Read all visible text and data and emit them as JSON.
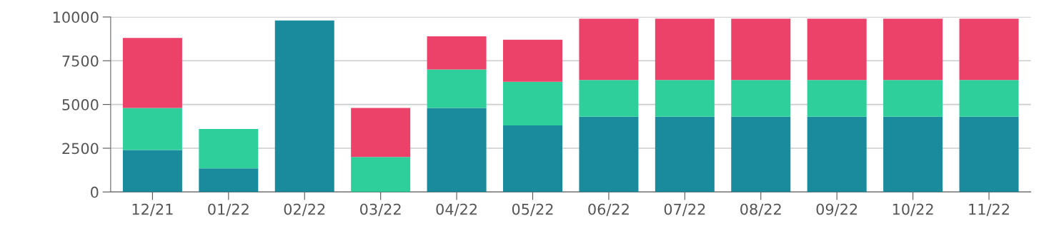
{
  "chart_data": {
    "type": "bar",
    "stacked": true,
    "categories": [
      "12/21",
      "01/22",
      "02/22",
      "03/22",
      "04/22",
      "05/22",
      "06/22",
      "07/22",
      "08/22",
      "09/22",
      "10/22",
      "11/22"
    ],
    "series": [
      {
        "color": "#1a8b9d",
        "values": [
          2400,
          1350,
          9800,
          0,
          4800,
          3800,
          4300,
          4300,
          4300,
          4300,
          4300,
          4300
        ]
      },
      {
        "color": "#2fcf9c",
        "values": [
          2400,
          2250,
          0,
          2000,
          2200,
          2500,
          2100,
          2100,
          2100,
          2100,
          2100,
          2100
        ]
      },
      {
        "color": "#ec4169",
        "values": [
          4000,
          0,
          0,
          2800,
          1900,
          2400,
          3500,
          3500,
          3500,
          3500,
          3500,
          3500
        ]
      }
    ],
    "ylim": [
      0,
      10000
    ],
    "yticks": [
      0,
      2500,
      5000,
      7500,
      10000
    ],
    "grid": "y"
  }
}
